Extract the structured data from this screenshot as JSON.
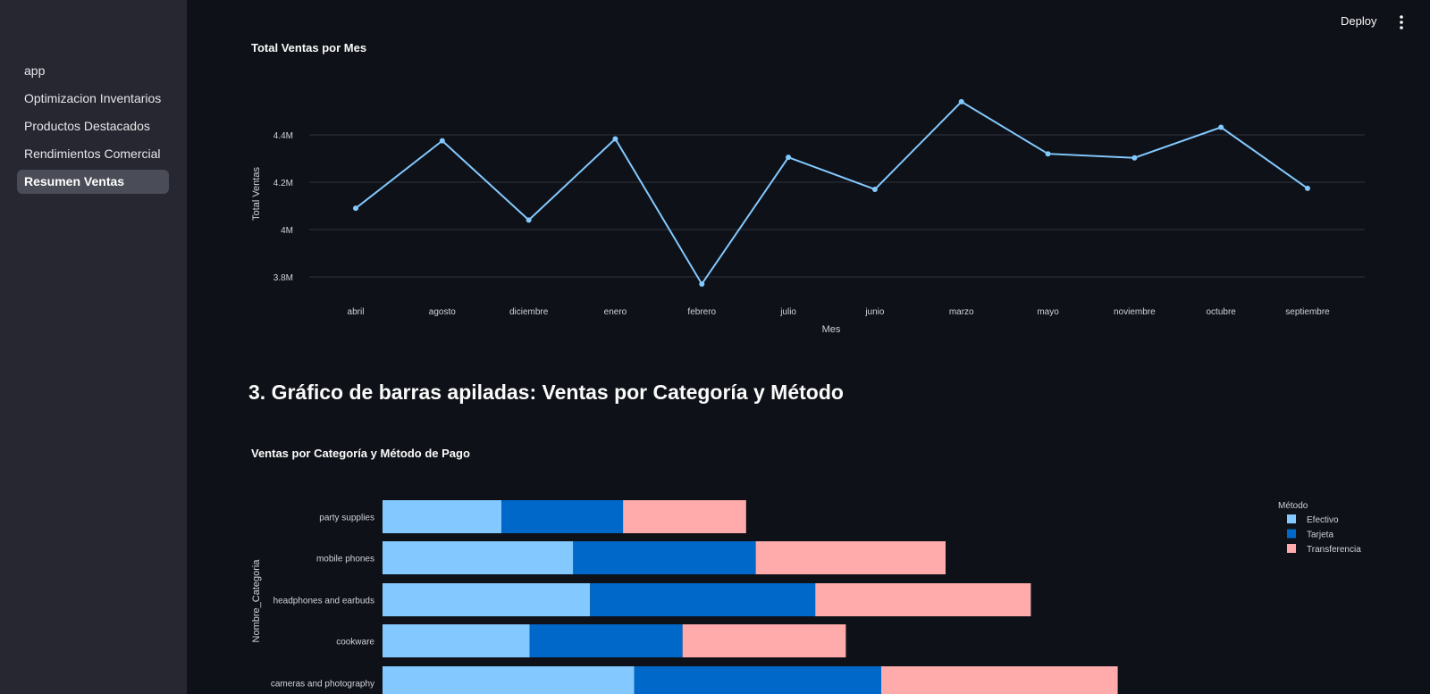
{
  "sidebar": {
    "items": [
      {
        "label": "app",
        "active": false
      },
      {
        "label": "Optimizacion Inventarios",
        "active": false
      },
      {
        "label": "Productos Destacados",
        "active": false
      },
      {
        "label": "Rendimientos Comercial",
        "active": false
      },
      {
        "label": "Resumen Ventas",
        "active": true
      }
    ]
  },
  "header": {
    "deploy_label": "Deploy",
    "menu_icon": "more-vertical-icon"
  },
  "section": {
    "heading": "3. Gráfico de barras apiladas: Ventas por Categoría y Método"
  },
  "chart_data": [
    {
      "type": "line",
      "title": "Total Ventas por Mes",
      "xlabel": "Mes",
      "ylabel": "Total Ventas",
      "categories": [
        "abril",
        "agosto",
        "diciembre",
        "enero",
        "febrero",
        "julio",
        "junio",
        "marzo",
        "mayo",
        "noviembre",
        "octubre",
        "septiembre"
      ],
      "values": [
        4090000,
        4375000,
        4040000,
        4383000,
        3770000,
        4305000,
        4170000,
        4540000,
        4320000,
        4303000,
        4432000,
        4174000
      ],
      "yticks": [
        3800000,
        4000000,
        4200000,
        4400000
      ],
      "ytick_labels": [
        "3.8M",
        "4M",
        "4.2M",
        "4.4M"
      ],
      "ylim": [
        3730000,
        4660000
      ],
      "grid": true,
      "color": "#83c9ff"
    },
    {
      "type": "bar",
      "orientation": "horizontal",
      "stacked": true,
      "title": "Ventas por Categoría y Método de Pago",
      "ylabel": "Nombre_Categoria",
      "legend_title": "Método",
      "legend_position": "top-right",
      "categories": [
        "party supplies",
        "mobile phones",
        "headphones and earbuds",
        "cookware",
        "cameras and photography"
      ],
      "series": [
        {
          "name": "Efectivo",
          "color": "#83c9ff",
          "values": [
            148,
            237,
            258,
            183,
            313
          ]
        },
        {
          "name": "Tarjeta",
          "color": "#0068c9",
          "values": [
            151,
            227,
            280,
            190,
            307
          ]
        },
        {
          "name": "Transferencia",
          "color": "#ffabab",
          "values": [
            153,
            236,
            268,
            203,
            294
          ]
        }
      ],
      "xlim": [
        0,
        1080
      ]
    }
  ]
}
